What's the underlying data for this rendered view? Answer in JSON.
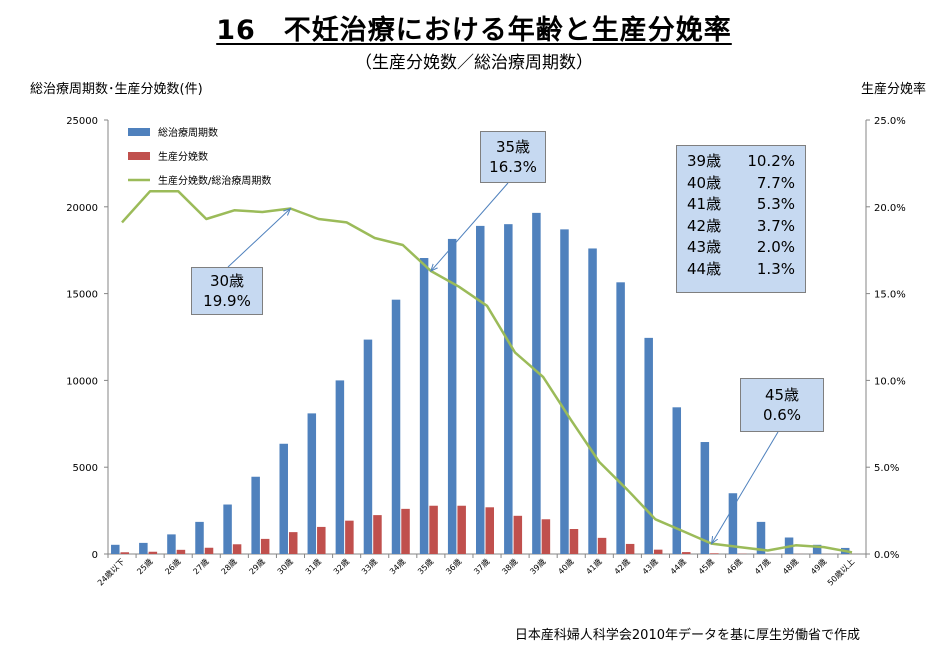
{
  "title": "16　不妊治療における年齢と生産分娩率",
  "subtitle": "（生産分娩数／総治療周期数）",
  "left_axis_label": "総治療周期数･生産分娩数(件)",
  "right_axis_label": "生産分娩率",
  "source_note": "日本産科婦人科学会2010年データを基に厚生労働省で作成",
  "callouts": {
    "age30": {
      "age": "30歳",
      "rate": "19.9%"
    },
    "age35": {
      "age": "35歳",
      "rate": "16.3%"
    },
    "age45": {
      "age": "45歳",
      "rate": "0.6%"
    },
    "list": [
      {
        "age": "39歳",
        "rate": "10.2%"
      },
      {
        "age": "40歳",
        "rate": "7.7%"
      },
      {
        "age": "41歳",
        "rate": "5.3%"
      },
      {
        "age": "42歳",
        "rate": "3.7%"
      },
      {
        "age": "43歳",
        "rate": "2.0%"
      },
      {
        "age": "44歳",
        "rate": "1.3%"
      }
    ]
  },
  "chart_data": {
    "type": "bar",
    "categories": [
      "24歳以下",
      "25歳",
      "26歳",
      "27歳",
      "28歳",
      "29歳",
      "30歳",
      "31歳",
      "32歳",
      "33歳",
      "34歳",
      "35歳",
      "36歳",
      "37歳",
      "38歳",
      "39歳",
      "40歳",
      "41歳",
      "42歳",
      "43歳",
      "44歳",
      "45歳",
      "46歳",
      "47歳",
      "48歳",
      "49歳",
      "50歳以上"
    ],
    "series": [
      {
        "name": "総治療周期数",
        "type": "bar",
        "axis": "left",
        "color": "#4f81bd",
        "values": [
          530,
          640,
          1130,
          1850,
          2850,
          4450,
          6350,
          8100,
          10000,
          12350,
          14650,
          17050,
          18150,
          18900,
          19000,
          19650,
          18700,
          17600,
          15650,
          12450,
          8450,
          6450,
          3500,
          1850,
          950,
          530,
          350
        ]
      },
      {
        "name": "生産分娩数",
        "type": "bar",
        "axis": "left",
        "color": "#c0504d",
        "values": [
          100,
          130,
          240,
          360,
          560,
          870,
          1260,
          1560,
          1920,
          2240,
          2600,
          2780,
          2780,
          2690,
          2200,
          2000,
          1440,
          930,
          580,
          250,
          110,
          40,
          15,
          5,
          5,
          3,
          2
        ]
      },
      {
        "name": "生産分娩数/総治療周期数",
        "type": "line",
        "axis": "right",
        "color": "#9bbb59",
        "values": [
          19.1,
          20.9,
          20.9,
          19.3,
          19.8,
          19.7,
          19.9,
          19.3,
          19.1,
          18.2,
          17.8,
          16.3,
          15.4,
          14.3,
          11.6,
          10.2,
          7.7,
          5.3,
          3.7,
          2.0,
          1.3,
          0.6,
          0.4,
          0.2,
          0.5,
          0.4,
          0.1
        ]
      }
    ],
    "y_left": {
      "ylim": [
        0,
        25000
      ],
      "ticks": [
        "0",
        "5000",
        "10000",
        "15000",
        "20000",
        "25000"
      ]
    },
    "y_right": {
      "ylim": [
        0,
        25
      ],
      "ticks": [
        "0.0%",
        "5.0%",
        "10.0%",
        "15.0%",
        "20.0%",
        "25.0%"
      ]
    },
    "grid": false,
    "legend_position": "top-left"
  }
}
